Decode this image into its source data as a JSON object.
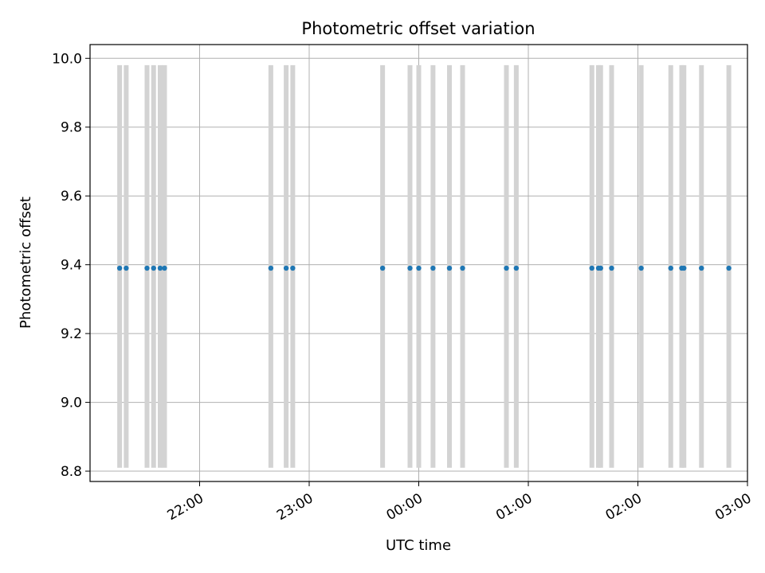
{
  "chart_data": {
    "type": "scatter",
    "title": "Photometric offset variation",
    "xlabel": "UTC time",
    "ylabel": "Photometric offset",
    "x_unit": "hours (UTC clock, past midnight > 24)",
    "xlim": [
      21.0,
      27.0
    ],
    "ylim": [
      8.77,
      10.04
    ],
    "grid": true,
    "x_ticks": [
      {
        "value": 22.0,
        "label": "22:00"
      },
      {
        "value": 23.0,
        "label": "23:00"
      },
      {
        "value": 24.0,
        "label": "00:00"
      },
      {
        "value": 25.0,
        "label": "01:00"
      },
      {
        "value": 26.0,
        "label": "02:00"
      },
      {
        "value": 27.0,
        "label": "03:00"
      }
    ],
    "y_ticks": [
      {
        "value": 8.8,
        "label": "8.8"
      },
      {
        "value": 9.0,
        "label": "9.0"
      },
      {
        "value": 9.2,
        "label": "9.2"
      },
      {
        "value": 9.4,
        "label": "9.4"
      },
      {
        "value": 9.6,
        "label": "9.6"
      },
      {
        "value": 9.8,
        "label": "9.8"
      },
      {
        "value": 10.0,
        "label": "10.0"
      }
    ],
    "error_bar": {
      "low": 8.81,
      "high": 9.98,
      "color": "#d3d3d3"
    },
    "marker_color": "#1f77b4",
    "series": [
      {
        "y": 9.39,
        "x": [
          21.27,
          21.33,
          21.52,
          21.58,
          21.64,
          21.68,
          22.65,
          22.79,
          22.85,
          23.67,
          23.92,
          24.0,
          24.13,
          24.28,
          24.4,
          24.8,
          24.89,
          25.58,
          25.64,
          25.66,
          25.76,
          26.03,
          26.3,
          26.4,
          26.42,
          26.58,
          26.83
        ]
      }
    ]
  }
}
